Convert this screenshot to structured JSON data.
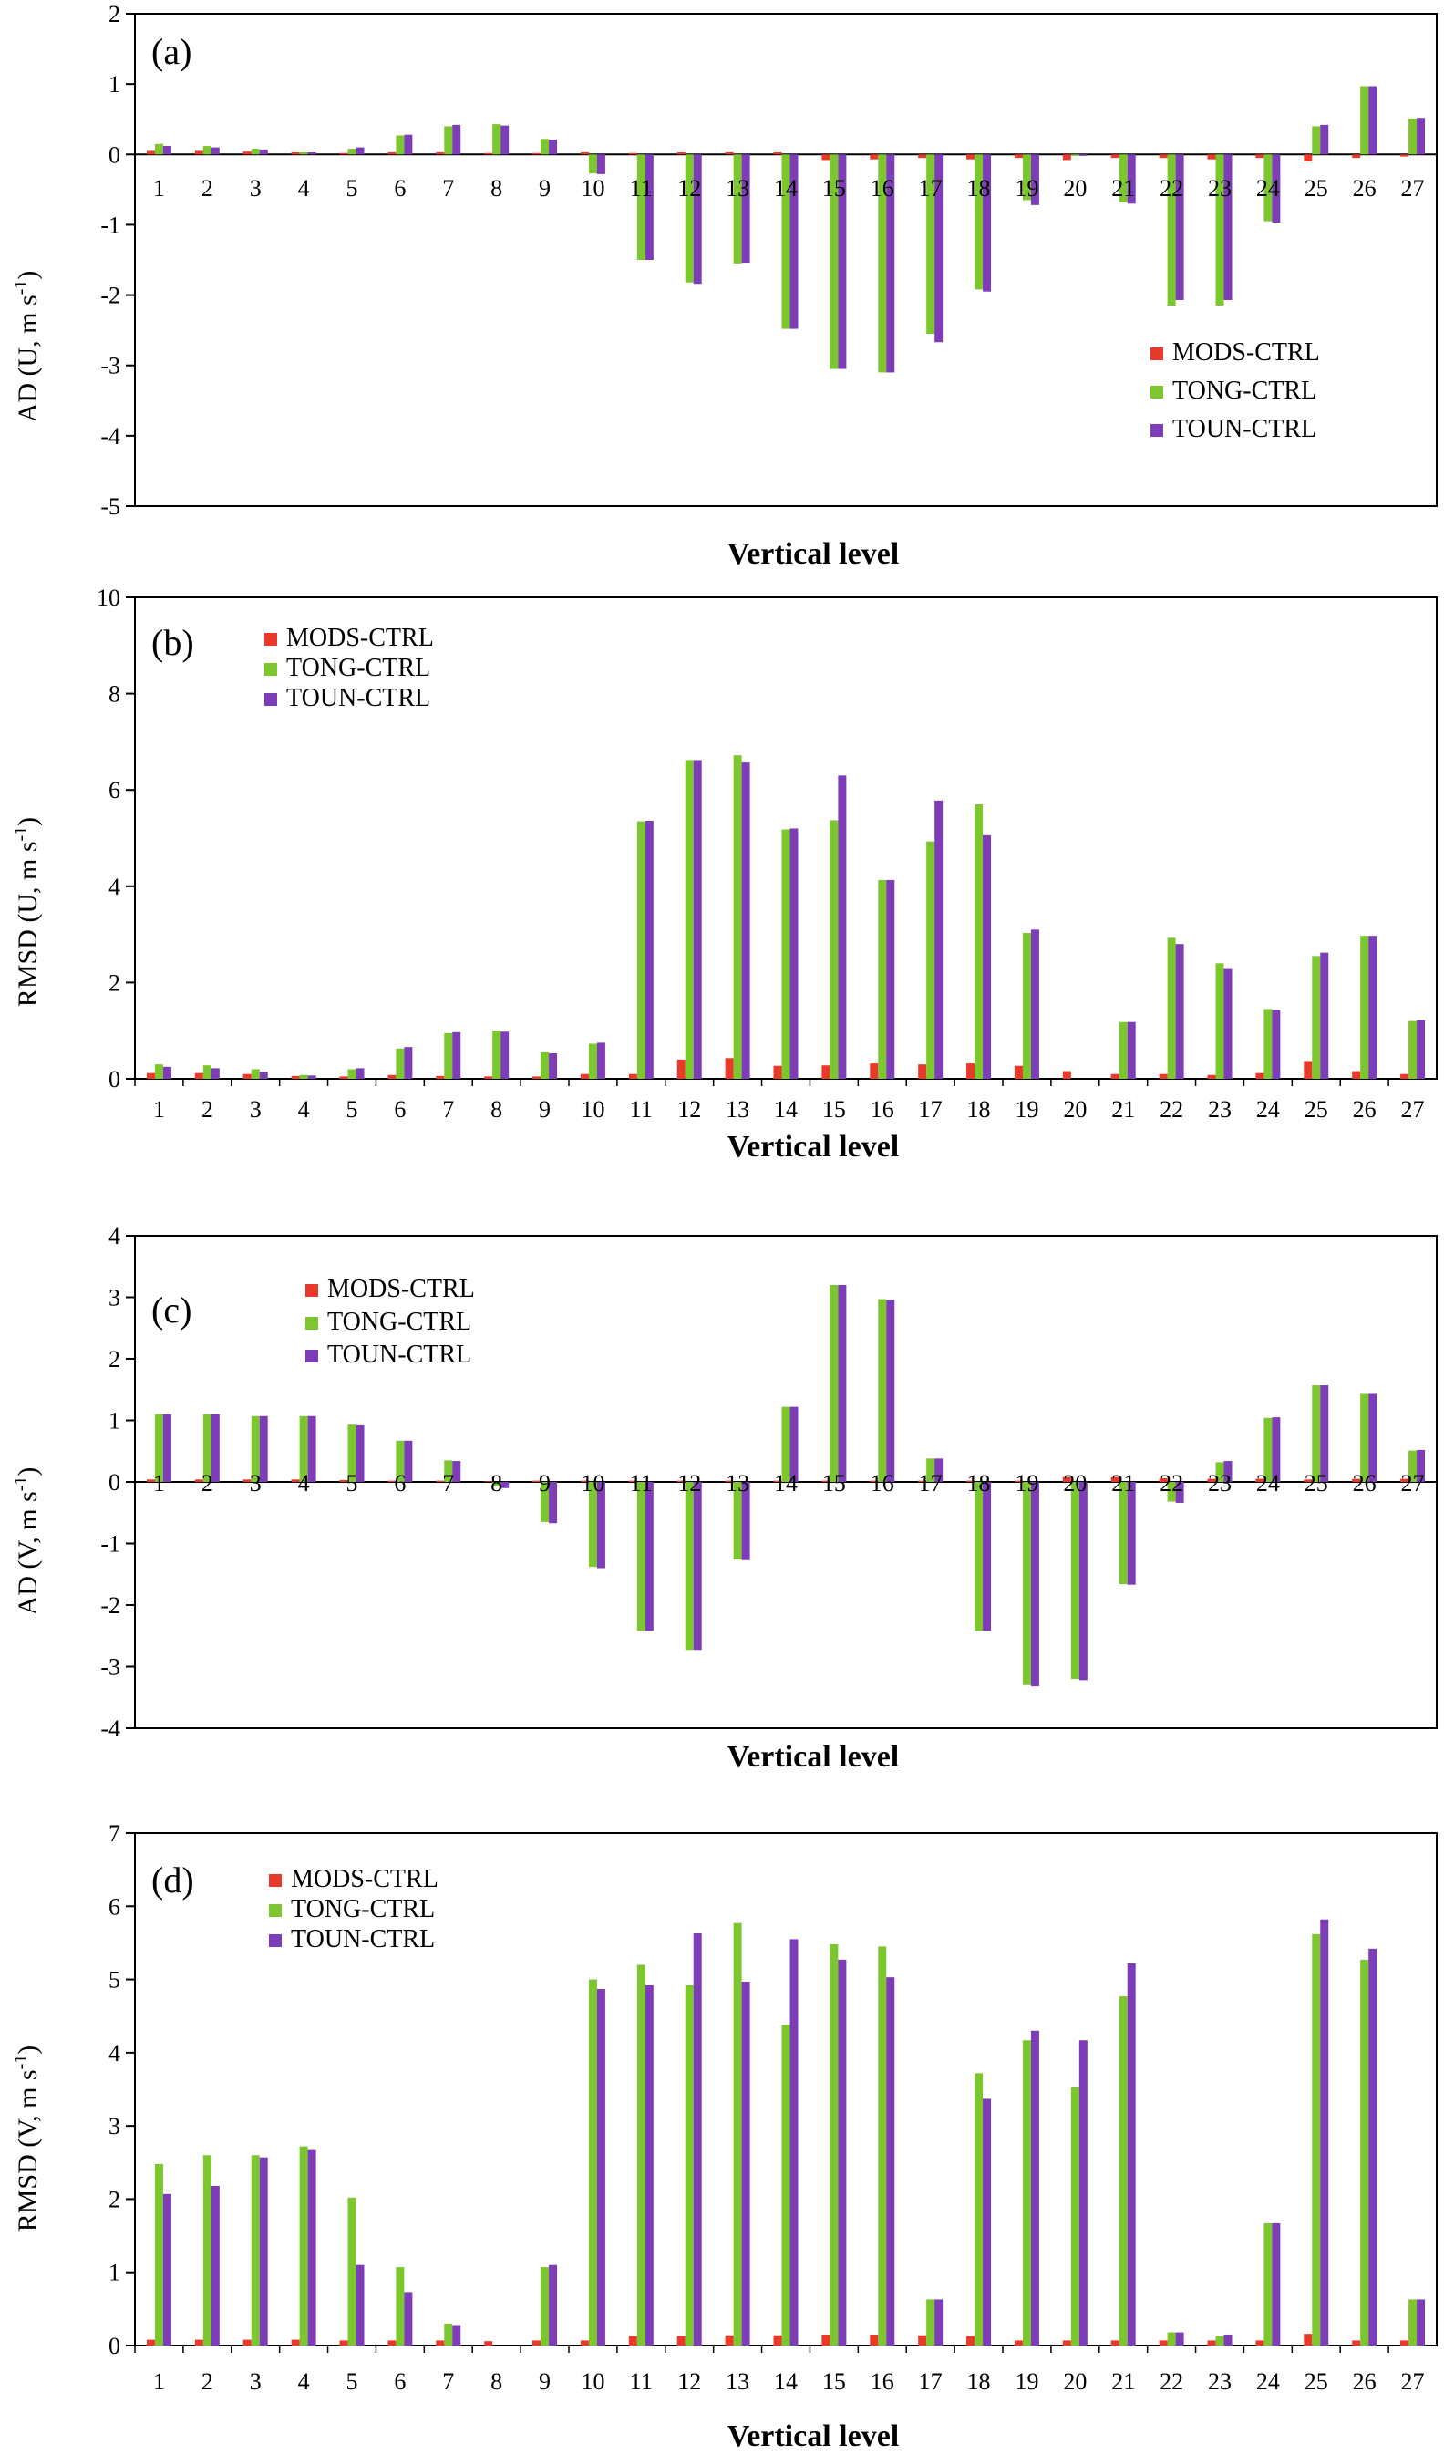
{
  "colors": {
    "MODS-CTRL": "#e8392b",
    "TONG-CTRL": "#7cc62e",
    "TOUN-CTRL": "#7d3db8"
  },
  "chart_data": [
    {
      "type": "bar",
      "panel_label": "(a)",
      "xlabel": "Vertical level",
      "ylabel": "AD (U, m s-1)",
      "ylim": [
        -5,
        2
      ],
      "yticks": [
        2,
        1,
        0,
        -1,
        -2,
        -3,
        -4,
        -5
      ],
      "legend": "bottom-right",
      "categories": [
        "1",
        "2",
        "3",
        "4",
        "5",
        "6",
        "7",
        "8",
        "9",
        "10",
        "11",
        "12",
        "13",
        "14",
        "15",
        "16",
        "17",
        "18",
        "19",
        "20",
        "21",
        "22",
        "23",
        "24",
        "25",
        "26",
        "27"
      ],
      "series": [
        {
          "name": "MODS-CTRL",
          "values": [
            0.05,
            0.05,
            0.04,
            0.03,
            0.02,
            0.03,
            0.03,
            0.02,
            0.02,
            0.03,
            0.02,
            0.03,
            0.03,
            0.03,
            -0.08,
            -0.07,
            -0.05,
            -0.07,
            -0.05,
            -0.08,
            -0.05,
            -0.05,
            -0.07,
            -0.05,
            -0.1,
            -0.05,
            -0.03
          ]
        },
        {
          "name": "TONG-CTRL",
          "values": [
            0.15,
            0.12,
            0.08,
            0.03,
            0.08,
            0.27,
            0.4,
            0.43,
            0.22,
            -0.27,
            -1.5,
            -1.82,
            -1.55,
            -2.48,
            -3.05,
            -3.1,
            -2.55,
            -1.92,
            -0.65,
            -0.02,
            -0.68,
            -2.15,
            -2.15,
            -0.95,
            0.4,
            0.97,
            0.51
          ]
        },
        {
          "name": "TOUN-CTRL",
          "values": [
            0.12,
            0.1,
            0.07,
            0.03,
            0.1,
            0.28,
            0.42,
            0.41,
            0.21,
            -0.28,
            -1.5,
            -1.84,
            -1.54,
            -2.48,
            -3.05,
            -3.1,
            -2.67,
            -1.95,
            -0.72,
            -0.02,
            -0.7,
            -2.07,
            -2.07,
            -0.97,
            0.42,
            0.97,
            0.52
          ]
        }
      ]
    },
    {
      "type": "bar",
      "panel_label": "(b)",
      "xlabel": "Vertical level",
      "ylabel": "RMSD (U, m s-1)",
      "ylim": [
        0,
        10
      ],
      "yticks": [
        10,
        8,
        6,
        4,
        2,
        0
      ],
      "legend": "top-left",
      "categories": [
        "1",
        "2",
        "3",
        "4",
        "5",
        "6",
        "7",
        "8",
        "9",
        "10",
        "11",
        "12",
        "13",
        "14",
        "15",
        "16",
        "17",
        "18",
        "19",
        "20",
        "21",
        "22",
        "23",
        "24",
        "25",
        "26",
        "27"
      ],
      "series": [
        {
          "name": "MODS-CTRL",
          "values": [
            0.12,
            0.12,
            0.1,
            0.06,
            0.05,
            0.08,
            0.06,
            0.05,
            0.05,
            0.1,
            0.1,
            0.4,
            0.43,
            0.27,
            0.28,
            0.32,
            0.3,
            0.32,
            0.27,
            0.16,
            0.1,
            0.1,
            0.08,
            0.12,
            0.37,
            0.16,
            0.1
          ]
        },
        {
          "name": "TONG-CTRL",
          "values": [
            0.3,
            0.28,
            0.2,
            0.08,
            0.2,
            0.63,
            0.95,
            1.0,
            0.55,
            0.73,
            5.35,
            6.62,
            6.72,
            5.18,
            5.37,
            4.13,
            4.93,
            5.7,
            3.03,
            0.0,
            1.18,
            2.93,
            2.4,
            1.45,
            2.55,
            2.97,
            1.2
          ]
        },
        {
          "name": "TOUN-CTRL",
          "values": [
            0.25,
            0.22,
            0.15,
            0.07,
            0.22,
            0.66,
            0.97,
            0.98,
            0.53,
            0.75,
            5.36,
            6.62,
            6.57,
            5.2,
            6.3,
            4.13,
            5.78,
            5.06,
            3.1,
            0.0,
            1.18,
            2.8,
            2.3,
            1.43,
            2.62,
            2.97,
            1.22
          ]
        }
      ]
    },
    {
      "type": "bar",
      "panel_label": "(c)",
      "xlabel": "Vertical level",
      "ylabel": "AD (V, m s-1)",
      "ylim": [
        -4,
        4
      ],
      "yticks": [
        4,
        3,
        2,
        1,
        0,
        -1,
        -2,
        -3,
        -4
      ],
      "legend": "top-left",
      "categories": [
        "1",
        "2",
        "3",
        "4",
        "5",
        "6",
        "7",
        "8",
        "9",
        "10",
        "11",
        "12",
        "13",
        "14",
        "15",
        "16",
        "17",
        "18",
        "19",
        "20",
        "21",
        "22",
        "23",
        "24",
        "25",
        "26",
        "27"
      ],
      "series": [
        {
          "name": "MODS-CTRL",
          "values": [
            0.04,
            0.04,
            0.04,
            0.04,
            0.03,
            0.02,
            0.02,
            0.01,
            0.02,
            0.02,
            0.02,
            0.02,
            0.02,
            0.02,
            0.02,
            0.02,
            0.02,
            0.02,
            0.02,
            0.08,
            0.08,
            0.06,
            0.05,
            0.05,
            0.04,
            0.05,
            0.05
          ]
        },
        {
          "name": "TONG-CTRL",
          "values": [
            1.1,
            1.1,
            1.07,
            1.07,
            0.93,
            0.67,
            0.35,
            -0.07,
            -0.65,
            -1.38,
            -2.42,
            -2.73,
            -1.26,
            1.22,
            3.2,
            2.97,
            0.38,
            -2.42,
            -3.3,
            -3.2,
            -1.66,
            -0.32,
            0.32,
            1.04,
            1.57,
            1.43,
            0.51
          ]
        },
        {
          "name": "TOUN-CTRL",
          "values": [
            1.1,
            1.1,
            1.07,
            1.07,
            0.92,
            0.67,
            0.34,
            -0.1,
            -0.67,
            -1.4,
            -2.42,
            -2.73,
            -1.27,
            1.22,
            3.2,
            2.96,
            0.38,
            -2.42,
            -3.32,
            -3.22,
            -1.67,
            -0.34,
            0.34,
            1.05,
            1.57,
            1.43,
            0.52
          ]
        }
      ]
    },
    {
      "type": "bar",
      "panel_label": "(d)",
      "xlabel": "Vertical level",
      "ylabel": "RMSD (V, m s-1)",
      "ylim": [
        0,
        7
      ],
      "yticks": [
        7,
        6,
        5,
        4,
        3,
        2,
        1,
        0
      ],
      "legend": "top-left",
      "categories": [
        "1",
        "2",
        "3",
        "4",
        "5",
        "6",
        "7",
        "8",
        "9",
        "10",
        "11",
        "12",
        "13",
        "14",
        "15",
        "16",
        "17",
        "18",
        "19",
        "20",
        "21",
        "22",
        "23",
        "24",
        "25",
        "26",
        "27"
      ],
      "series": [
        {
          "name": "MODS-CTRL",
          "values": [
            0.08,
            0.08,
            0.08,
            0.08,
            0.07,
            0.07,
            0.07,
            0.06,
            0.07,
            0.07,
            0.13,
            0.13,
            0.14,
            0.14,
            0.15,
            0.15,
            0.14,
            0.13,
            0.07,
            0.07,
            0.07,
            0.07,
            0.07,
            0.07,
            0.16,
            0.07,
            0.07
          ]
        },
        {
          "name": "TONG-CTRL",
          "values": [
            2.48,
            2.6,
            2.6,
            2.72,
            2.02,
            1.07,
            0.3,
            0.0,
            1.07,
            5.0,
            5.2,
            4.92,
            5.77,
            4.38,
            5.48,
            5.45,
            0.63,
            3.72,
            4.17,
            3.53,
            4.77,
            0.18,
            0.13,
            1.67,
            5.62,
            5.27,
            0.63
          ]
        },
        {
          "name": "TOUN-CTRL",
          "values": [
            2.07,
            2.18,
            2.57,
            2.67,
            1.1,
            0.73,
            0.28,
            0.0,
            1.1,
            4.87,
            4.92,
            5.63,
            4.97,
            5.55,
            5.27,
            5.03,
            0.63,
            3.37,
            4.3,
            4.17,
            5.22,
            0.18,
            0.15,
            1.67,
            5.82,
            5.42,
            0.63
          ]
        }
      ]
    }
  ]
}
